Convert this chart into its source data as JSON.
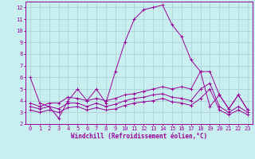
{
  "xlabel": "Windchill (Refroidissement éolien,°C)",
  "bg_color": "#c8eef0",
  "line_color": "#990099",
  "grid_color": "#b0d8da",
  "xlim": [
    -0.5,
    23.5
  ],
  "ylim": [
    2,
    12.5
  ],
  "xticks": [
    0,
    1,
    2,
    3,
    4,
    5,
    6,
    7,
    8,
    9,
    10,
    11,
    12,
    13,
    14,
    15,
    16,
    17,
    18,
    19,
    20,
    21,
    22,
    23
  ],
  "yticks": [
    2,
    3,
    4,
    5,
    6,
    7,
    8,
    9,
    10,
    11,
    12
  ],
  "x": [
    0,
    1,
    2,
    3,
    4,
    5,
    6,
    7,
    8,
    9,
    10,
    11,
    12,
    13,
    14,
    15,
    16,
    17,
    18,
    19,
    20,
    21,
    22,
    23
  ],
  "line1": [
    6.0,
    3.8,
    3.5,
    2.5,
    4.0,
    5.0,
    4.0,
    5.0,
    3.8,
    6.5,
    9.0,
    11.0,
    11.8,
    12.0,
    12.2,
    10.5,
    9.5,
    7.5,
    6.5,
    3.5,
    4.5,
    3.3,
    4.5,
    3.2
  ],
  "line2": [
    3.8,
    3.5,
    3.8,
    3.8,
    4.3,
    4.2,
    4.0,
    4.2,
    4.0,
    4.2,
    4.5,
    4.6,
    4.8,
    5.0,
    5.2,
    5.0,
    5.2,
    5.0,
    6.5,
    6.5,
    4.5,
    3.3,
    4.5,
    3.2
  ],
  "line3": [
    3.5,
    3.3,
    3.5,
    3.3,
    3.8,
    3.8,
    3.5,
    3.8,
    3.5,
    3.7,
    4.0,
    4.2,
    4.3,
    4.5,
    4.6,
    4.3,
    4.2,
    4.0,
    5.0,
    5.5,
    3.5,
    3.0,
    3.5,
    3.0
  ],
  "line4": [
    3.2,
    3.0,
    3.2,
    3.0,
    3.4,
    3.5,
    3.2,
    3.4,
    3.2,
    3.3,
    3.6,
    3.8,
    3.9,
    4.0,
    4.2,
    3.9,
    3.8,
    3.6,
    4.2,
    5.0,
    3.2,
    2.8,
    3.2,
    2.8
  ]
}
